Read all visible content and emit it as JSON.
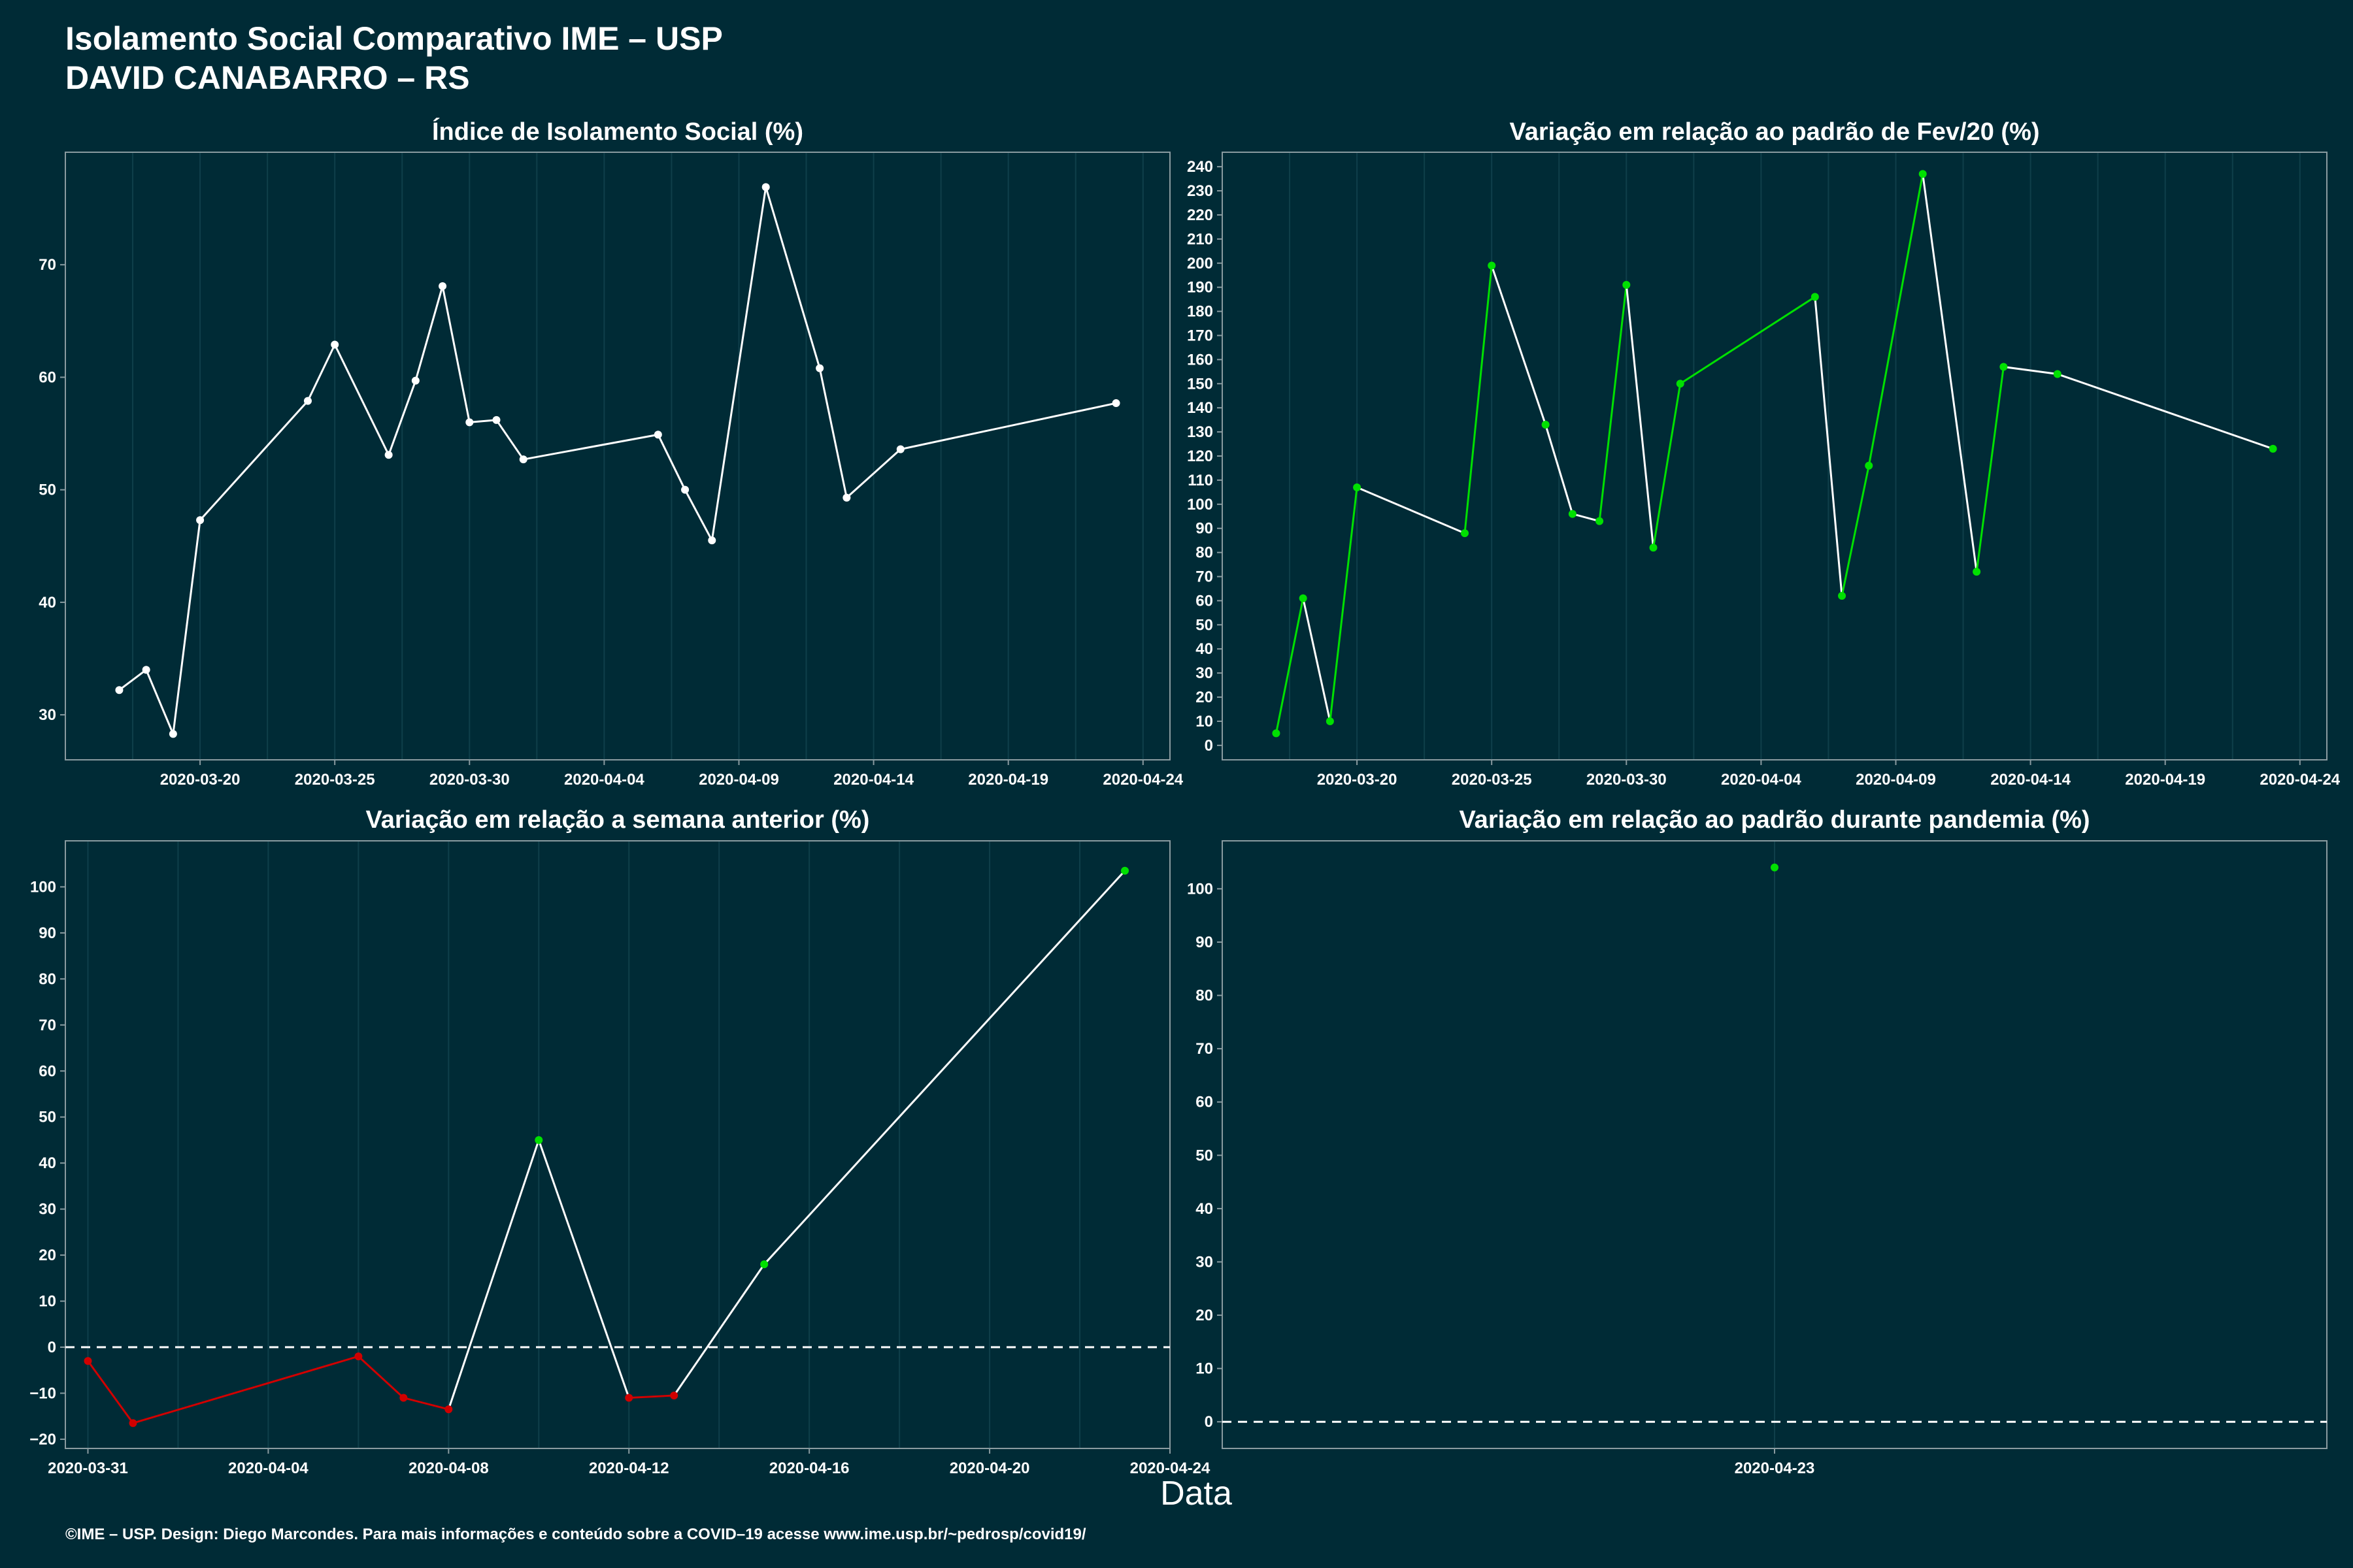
{
  "page": {
    "title_line1": "Isolamento Social Comparativo IME – USP",
    "title_line2": "DAVID CANABARRO – RS",
    "x_label": "Data",
    "caption": "©IME – USP. Design: Diego Marcondes. Para mais informações e conteúdo sobre a COVID–19 acesse www.ime.usp.br/~pedrosp/covid19/"
  },
  "colors": {
    "background": "#002b36",
    "frame": "#8a9ba0",
    "grid": "#0f3f4a",
    "line": "#ffffff",
    "positive": "#00e000",
    "negative": "#d00000"
  },
  "chart_data": [
    {
      "id": "panel1",
      "type": "line",
      "title": "Índice de Isolamento Social (%)",
      "x_type": "date",
      "xlim": [
        "2020-03-15",
        "2020-04-25"
      ],
      "x_ticks": [
        "2020-03-20",
        "2020-03-25",
        "2020-03-30",
        "2020-04-04",
        "2020-04-09",
        "2020-04-14",
        "2020-04-19",
        "2020-04-24"
      ],
      "ylim": [
        26,
        80
      ],
      "y_ticks": [
        30,
        40,
        50,
        60,
        70
      ],
      "point_color": "white",
      "points": [
        {
          "x": "2020-03-17",
          "y": 32.2
        },
        {
          "x": "2020-03-18",
          "y": 34.0
        },
        {
          "x": "2020-03-19",
          "y": 28.3
        },
        {
          "x": "2020-03-20",
          "y": 47.3
        },
        {
          "x": "2020-03-24",
          "y": 57.9
        },
        {
          "x": "2020-03-25",
          "y": 62.9
        },
        {
          "x": "2020-03-27",
          "y": 53.1
        },
        {
          "x": "2020-03-28",
          "y": 59.7
        },
        {
          "x": "2020-03-29",
          "y": 68.1
        },
        {
          "x": "2020-03-30",
          "y": 56.0
        },
        {
          "x": "2020-03-31",
          "y": 56.2
        },
        {
          "x": "2020-04-01",
          "y": 52.7
        },
        {
          "x": "2020-04-06",
          "y": 54.9
        },
        {
          "x": "2020-04-07",
          "y": 50.0
        },
        {
          "x": "2020-04-08",
          "y": 45.5
        },
        {
          "x": "2020-04-10",
          "y": 76.9
        },
        {
          "x": "2020-04-12",
          "y": 60.8
        },
        {
          "x": "2020-04-13",
          "y": 49.3
        },
        {
          "x": "2020-04-15",
          "y": 53.6
        },
        {
          "x": "2020-04-23",
          "y": 57.7
        }
      ]
    },
    {
      "id": "panel2",
      "type": "line",
      "title": "Variação em relação ao padrão de Fev/20 (%)",
      "x_type": "date",
      "xlim": [
        "2020-03-15",
        "2020-04-25"
      ],
      "x_ticks": [
        "2020-03-20",
        "2020-03-25",
        "2020-03-30",
        "2020-04-04",
        "2020-04-09",
        "2020-04-14",
        "2020-04-19",
        "2020-04-24"
      ],
      "ylim": [
        -6,
        246
      ],
      "y_ticks": [
        0,
        10,
        20,
        30,
        40,
        50,
        60,
        70,
        80,
        90,
        100,
        110,
        120,
        130,
        140,
        150,
        160,
        170,
        180,
        190,
        200,
        210,
        220,
        230,
        240
      ],
      "point_color": "green",
      "points": [
        {
          "x": "2020-03-17",
          "y": 5
        },
        {
          "x": "2020-03-18",
          "y": 61
        },
        {
          "x": "2020-03-19",
          "y": 10
        },
        {
          "x": "2020-03-20",
          "y": 107
        },
        {
          "x": "2020-03-24",
          "y": 88
        },
        {
          "x": "2020-03-25",
          "y": 199
        },
        {
          "x": "2020-03-27",
          "y": 133
        },
        {
          "x": "2020-03-28",
          "y": 96
        },
        {
          "x": "2020-03-29",
          "y": 93
        },
        {
          "x": "2020-03-30",
          "y": 191
        },
        {
          "x": "2020-03-31",
          "y": 82
        },
        {
          "x": "2020-04-01",
          "y": 150
        },
        {
          "x": "2020-04-06",
          "y": 186
        },
        {
          "x": "2020-04-07",
          "y": 62
        },
        {
          "x": "2020-04-08",
          "y": 116
        },
        {
          "x": "2020-04-10",
          "y": 237
        },
        {
          "x": "2020-04-12",
          "y": 72
        },
        {
          "x": "2020-04-13",
          "y": 157
        },
        {
          "x": "2020-04-15",
          "y": 154
        },
        {
          "x": "2020-04-23",
          "y": 123
        }
      ]
    },
    {
      "id": "panel3",
      "type": "line",
      "title": "Variação em relação a semana anterior (%)",
      "x_type": "date",
      "xlim": [
        "2020-03-30.5",
        "2020-04-24"
      ],
      "x_ticks": [
        "2020-03-31",
        "2020-04-04",
        "2020-04-08",
        "2020-04-12",
        "2020-04-16",
        "2020-04-20",
        "2020-04-24"
      ],
      "ylim": [
        -22,
        110
      ],
      "y_ticks": [
        -20,
        -10,
        0,
        10,
        20,
        30,
        40,
        50,
        60,
        70,
        80,
        90,
        100
      ],
      "reference_line": 0,
      "point_color": "sign",
      "points": [
        {
          "x": "2020-03-31",
          "y": -3
        },
        {
          "x": "2020-04-01",
          "y": -16.5
        },
        {
          "x": "2020-04-06",
          "y": -2
        },
        {
          "x": "2020-04-07",
          "y": -11
        },
        {
          "x": "2020-04-08",
          "y": -13.5
        },
        {
          "x": "2020-04-10",
          "y": 45
        },
        {
          "x": "2020-04-12",
          "y": -11
        },
        {
          "x": "2020-04-13",
          "y": -10.5
        },
        {
          "x": "2020-04-15",
          "y": 18
        },
        {
          "x": "2020-04-23",
          "y": 103.5
        }
      ]
    },
    {
      "id": "panel4",
      "type": "scatter",
      "title": "Variação em relação ao padrão durante pandemia (%)",
      "x_type": "date",
      "xlim": [
        "2020-04-22",
        "2020-04-24"
      ],
      "x_ticks": [
        "2020-04-23"
      ],
      "ylim": [
        -5,
        109
      ],
      "y_ticks": [
        0,
        10,
        20,
        30,
        40,
        50,
        60,
        70,
        80,
        90,
        100
      ],
      "reference_line": 0,
      "point_color": "green",
      "points": [
        {
          "x": "2020-04-23",
          "y": 104
        }
      ]
    }
  ]
}
